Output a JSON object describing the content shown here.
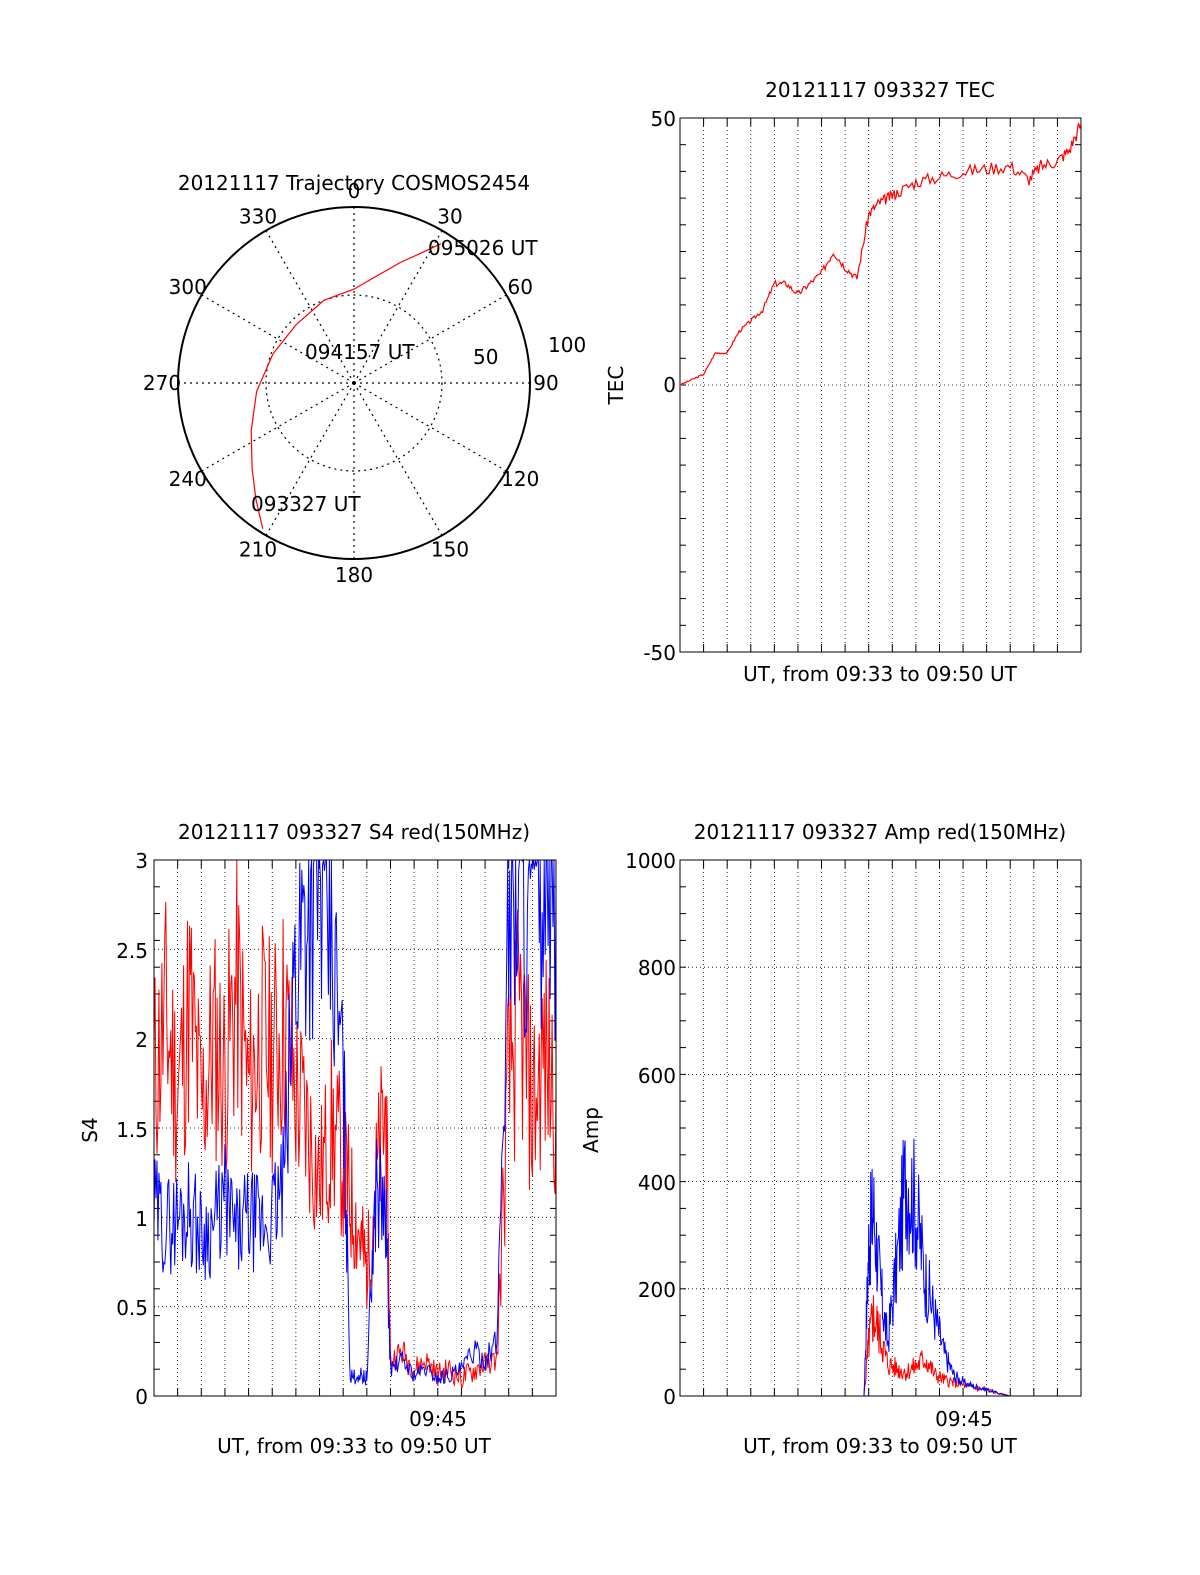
{
  "chart_data": [
    {
      "type": "polar",
      "title": "20121117 Trajectory COSMOS2454",
      "azimuth_labels": [
        "0",
        "30",
        "60",
        "90",
        "120",
        "150",
        "180",
        "210",
        "240",
        "270",
        "300",
        "330"
      ],
      "radial_labels": [
        "50",
        "100"
      ],
      "time_labels": {
        "start": "093327 UT",
        "mid": "094157 UT",
        "end": "095026 UT"
      },
      "series": [
        {
          "color": "#ff0000",
          "points": [
            {
              "az": 212,
              "el": 2
            },
            {
              "az": 220,
              "el": 12
            },
            {
              "az": 230,
              "el": 22
            },
            {
              "az": 245,
              "el": 32
            },
            {
              "az": 265,
              "el": 40
            },
            {
              "az": 290,
              "el": 46
            },
            {
              "az": 315,
              "el": 48
            },
            {
              "az": 340,
              "el": 45
            },
            {
              "az": 0,
              "el": 42
            },
            {
              "az": 12,
              "el": 34
            },
            {
              "az": 21,
              "el": 24
            },
            {
              "az": 28,
              "el": 14
            },
            {
              "az": 32,
              "el": 6
            }
          ]
        }
      ]
    },
    {
      "type": "line",
      "title": "20121117 093327 TEC",
      "xlabel": "UT, from 09:33 to 09:50 UT",
      "ylabel": "TEC",
      "yticks": [
        "50",
        "0",
        "-50"
      ],
      "ylim": [
        -50,
        50
      ],
      "xlim": [
        0,
        17
      ],
      "grid": true,
      "series": [
        {
          "color": "#ff0000",
          "x": [
            0,
            0.5,
            1.0,
            1.5,
            2.0,
            2.5,
            3.0,
            3.5,
            4.0,
            4.5,
            5.0,
            5.5,
            6.0,
            6.5,
            7.0,
            7.5,
            8.0,
            8.4,
            8.8,
            9.2,
            10.0,
            11.0,
            12.0,
            13.0,
            14.0,
            14.8,
            15.3,
            16.0,
            16.5,
            17.0
          ],
          "y": [
            0,
            1,
            2,
            6,
            6,
            10,
            12,
            14,
            19,
            19,
            17,
            19,
            21,
            25,
            22,
            20,
            32,
            34,
            35,
            36,
            38,
            39,
            40,
            40.5,
            41,
            38.5,
            41,
            42,
            44,
            49
          ]
        }
      ]
    },
    {
      "type": "line",
      "title": "20121117 093327 S4 red(150MHz)",
      "xlabel": "UT, from 09:33 to 09:50 UT",
      "ylabel": "S4",
      "xtick_label": "09:45",
      "yticks": [
        "0",
        "0.5",
        "1",
        "1.5",
        "2",
        "2.5",
        "3"
      ],
      "ylim": [
        0,
        3
      ],
      "xlim": [
        0,
        17
      ],
      "grid": true,
      "series": [
        {
          "color": "#ff0000",
          "x": [
            0,
            0.5,
            1,
            1.5,
            2,
            2.5,
            3,
            3.5,
            4,
            4.5,
            5,
            5.5,
            6,
            6.5,
            7,
            7.5,
            8,
            8.3,
            8.7,
            9,
            9.4,
            9.8,
            10,
            10.5,
            11,
            11.5,
            12,
            12.5,
            13,
            13.5,
            14,
            14.5,
            15,
            15.5,
            16,
            16.5,
            17
          ],
          "y": [
            1.8,
            2.1,
            1.7,
            2.2,
            1.6,
            2.0,
            1.8,
            2.3,
            1.7,
            2.0,
            1.9,
            2.1,
            1.7,
            1.5,
            1.2,
            1.5,
            1.3,
            1.1,
            0.9,
            0.7,
            1.2,
            1.6,
            0.2,
            0.25,
            0.15,
            0.2,
            0.12,
            0.15,
            0.1,
            0.14,
            0.18,
            0.2,
            1.8,
            2.1,
            1.6,
            1.9,
            1.7
          ]
        },
        {
          "color": "#0000ff",
          "x": [
            0,
            0.5,
            1,
            1.5,
            2,
            2.5,
            3,
            3.5,
            4,
            4.5,
            5,
            5.5,
            6,
            6.5,
            7,
            7.5,
            8,
            8.3,
            8.7,
            9,
            9.4,
            9.8,
            10,
            10.5,
            11,
            11.5,
            12,
            12.5,
            13,
            13.5,
            14,
            14.5,
            15,
            15.5,
            16,
            16.5,
            17
          ],
          "y": [
            1.05,
            0.95,
            1.0,
            1.05,
            0.9,
            0.95,
            1.1,
            0.9,
            1.0,
            0.95,
            1.0,
            1.2,
            2.5,
            2.8,
            2.9,
            2.5,
            1.8,
            0.1,
            0.12,
            0.1,
            1.2,
            1.0,
            0.15,
            0.2,
            0.12,
            0.15,
            0.1,
            0.12,
            0.15,
            0.25,
            0.2,
            0.3,
            2.8,
            2.9,
            2.7,
            2.9,
            2.8
          ]
        }
      ]
    },
    {
      "type": "line",
      "title": "20121117 093327 Amp red(150MHz)",
      "xlabel": "UT, from 09:33 to 09:50 UT",
      "ylabel": "Amp",
      "xtick_label": "09:45",
      "yticks": [
        "0",
        "200",
        "400",
        "600",
        "800",
        "1000"
      ],
      "ylim": [
        0,
        1000
      ],
      "xlim": [
        0,
        17
      ],
      "grid": true,
      "series": [
        {
          "color": "#ff0000",
          "x": [
            0,
            7.8,
            8.0,
            8.2,
            8.5,
            8.8,
            9.2,
            9.6,
            10.0,
            10.4,
            10.8,
            11.2,
            11.6,
            12.0,
            12.5,
            13.0,
            13.5,
            14.0,
            17.0
          ],
          "y": [
            0,
            0,
            100,
            150,
            110,
            60,
            50,
            45,
            55,
            70,
            40,
            30,
            25,
            20,
            15,
            12,
            5,
            0,
            0
          ]
        },
        {
          "color": "#0000ff",
          "x": [
            0,
            7.8,
            8.0,
            8.2,
            8.5,
            8.8,
            9.2,
            9.6,
            10.0,
            10.4,
            10.8,
            11.2,
            11.6,
            12.0,
            12.5,
            13.0,
            13.5,
            14.0,
            17.0
          ],
          "y": [
            0,
            0,
            280,
            350,
            200,
            100,
            250,
            420,
            350,
            220,
            150,
            80,
            40,
            25,
            18,
            12,
            5,
            0,
            0
          ]
        }
      ]
    }
  ]
}
